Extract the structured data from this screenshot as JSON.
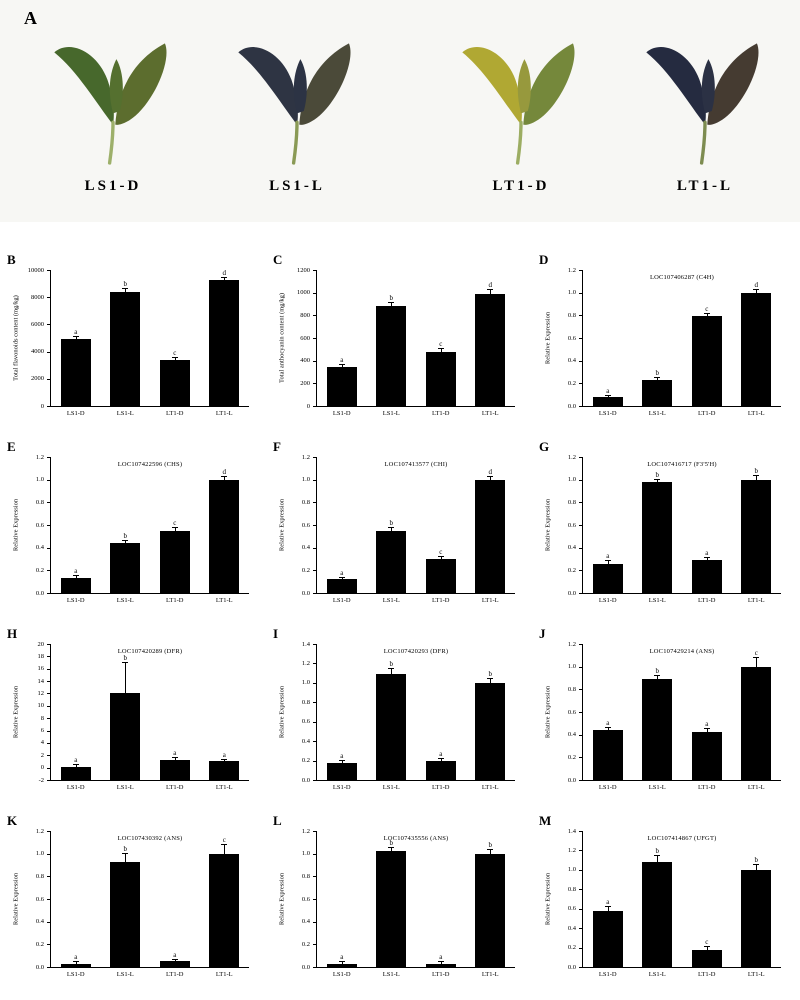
{
  "panel_a": {
    "letter": "A",
    "background": "#f7f7f4",
    "photos": [
      {
        "label": "LS1-D",
        "leaf_left": "#47682c",
        "leaf_right": "#5c6d2e",
        "bud": "#55702f",
        "stem": "#9db06a"
      },
      {
        "label": "LS1-L",
        "leaf_left": "#2e3443",
        "leaf_right": "#4b4a39",
        "bud": "#2c3344",
        "stem": "#8a9a55"
      },
      {
        "label": "LT1-D",
        "leaf_left": "#b0a833",
        "leaf_right": "#75883b",
        "bud": "#97993d",
        "stem": "#9cad62"
      },
      {
        "label": "LT1-L",
        "leaf_left": "#252b40",
        "leaf_right": "#453b31",
        "bud": "#2b3144",
        "stem": "#7d8c50"
      }
    ]
  },
  "chart_data": {
    "type": "bar",
    "categories": [
      "LS1-D",
      "LS1-L",
      "LT1-D",
      "LT1-L"
    ],
    "bar_color": "#000000",
    "grid": false,
    "panels": [
      {
        "letter": "B",
        "title": "",
        "ylabel": "Total flavonoids content (mg/kg)",
        "ymin": 0,
        "ymax": 10000,
        "step": 2000,
        "decimals": 0,
        "values": [
          4900,
          8350,
          3400,
          9250
        ],
        "errors": [
          150,
          250,
          150,
          150
        ],
        "sig": [
          "a",
          "b",
          "c",
          "d"
        ]
      },
      {
        "letter": "C",
        "title": "",
        "ylabel": "Total anthocyanin content (mg/kg)",
        "ymin": 0,
        "ymax": 1200,
        "step": 200,
        "decimals": 0,
        "values": [
          345,
          880,
          480,
          990
        ],
        "errors": [
          15,
          25,
          20,
          30
        ],
        "sig": [
          "a",
          "b",
          "c",
          "d"
        ]
      },
      {
        "letter": "D",
        "title": "LOC107406287 (C4H)",
        "ylabel": "Relative Expression",
        "ymin": 0,
        "ymax": 1.2,
        "step": 0.2,
        "decimals": 1,
        "values": [
          0.08,
          0.23,
          0.79,
          1.0
        ],
        "errors": [
          0.01,
          0.02,
          0.02,
          0.02
        ],
        "sig": [
          "a",
          "b",
          "c",
          "d"
        ]
      },
      {
        "letter": "E",
        "title": "LOC107422596 (CHS)",
        "ylabel": "Relative Expression",
        "ymin": 0,
        "ymax": 1.2,
        "step": 0.2,
        "decimals": 1,
        "values": [
          0.13,
          0.44,
          0.55,
          1.0
        ],
        "errors": [
          0.02,
          0.02,
          0.02,
          0.02
        ],
        "sig": [
          "a",
          "b",
          "c",
          "d"
        ]
      },
      {
        "letter": "F",
        "title": "LOC107413577 (CHI)",
        "ylabel": "Relative Expression",
        "ymin": 0,
        "ymax": 1.2,
        "step": 0.2,
        "decimals": 1,
        "values": [
          0.12,
          0.55,
          0.3,
          1.0
        ],
        "errors": [
          0.01,
          0.02,
          0.02,
          0.02
        ],
        "sig": [
          "a",
          "b",
          "c",
          "d"
        ]
      },
      {
        "letter": "G",
        "title": "LOC107416717 (F3'5'H)",
        "ylabel": "Relative Expression",
        "ymin": 0,
        "ymax": 1.2,
        "step": 0.2,
        "decimals": 1,
        "values": [
          0.26,
          0.98,
          0.29,
          1.0
        ],
        "errors": [
          0.02,
          0.02,
          0.02,
          0.03
        ],
        "sig": [
          "a",
          "b",
          "a",
          "b"
        ]
      },
      {
        "letter": "H",
        "title": "LOC107420289 (DFR)",
        "ylabel": "Relative Expression",
        "ymin": -2,
        "ymax": 20,
        "step": 2,
        "decimals": 0,
        "values": [
          0.1,
          12.0,
          1.2,
          1.0
        ],
        "errors": [
          0.4,
          5.0,
          0.4,
          0.3
        ],
        "sig": [
          "a",
          "b",
          "a",
          "a"
        ]
      },
      {
        "letter": "I",
        "title": "LOC107420293 (DFR)",
        "ylabel": "Relative Expression",
        "ymin": 0,
        "ymax": 1.4,
        "step": 0.2,
        "decimals": 1,
        "values": [
          0.18,
          1.09,
          0.2,
          1.0
        ],
        "errors": [
          0.02,
          0.05,
          0.02,
          0.04
        ],
        "sig": [
          "a",
          "b",
          "a",
          "b"
        ]
      },
      {
        "letter": "J",
        "title": "LOC107429214 (ANS)",
        "ylabel": "Relative Expression",
        "ymin": 0,
        "ymax": 1.2,
        "step": 0.2,
        "decimals": 1,
        "values": [
          0.44,
          0.89,
          0.42,
          1.0
        ],
        "errors": [
          0.02,
          0.03,
          0.03,
          0.08
        ],
        "sig": [
          "a",
          "b",
          "a",
          "c"
        ]
      },
      {
        "letter": "K",
        "title": "LOC107430392 (ANS)",
        "ylabel": "Relative Expression",
        "ymin": 0,
        "ymax": 1.2,
        "step": 0.2,
        "decimals": 1,
        "values": [
          0.03,
          0.93,
          0.05,
          1.0
        ],
        "errors": [
          0.01,
          0.07,
          0.01,
          0.08
        ],
        "sig": [
          "a",
          "b",
          "a",
          "c"
        ]
      },
      {
        "letter": "L",
        "title": "LOC107435556 (ANS)",
        "ylabel": "Relative Expression",
        "ymin": 0,
        "ymax": 1.2,
        "step": 0.2,
        "decimals": 1,
        "values": [
          0.03,
          1.02,
          0.03,
          1.0
        ],
        "errors": [
          0.01,
          0.03,
          0.01,
          0.03
        ],
        "sig": [
          "a",
          "b",
          "a",
          "b"
        ]
      },
      {
        "letter": "M",
        "title": "LOC107414867 (UFGT)",
        "ylabel": "Relative Expression",
        "ymin": 0,
        "ymax": 1.4,
        "step": 0.2,
        "decimals": 1,
        "values": [
          0.58,
          1.08,
          0.18,
          1.0
        ],
        "errors": [
          0.04,
          0.06,
          0.03,
          0.05
        ],
        "sig": [
          "a",
          "b",
          "c",
          "b"
        ]
      }
    ]
  }
}
